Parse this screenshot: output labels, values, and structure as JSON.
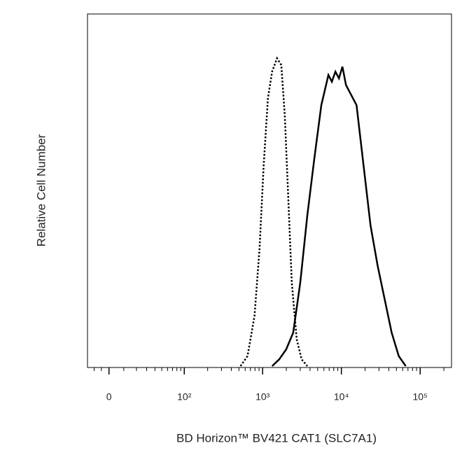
{
  "chart_data": {
    "type": "histogram-overlay",
    "xlabel": "BD Horizon™ BV421 CAT1 (SLC7A1)",
    "ylabel": "Relative Cell Number",
    "xscale": "biexponential",
    "xlim": [
      -15,
      250000
    ],
    "ylim": [
      0,
      100
    ],
    "xticks": [
      0,
      {
        "value": 100,
        "label": "10²"
      },
      {
        "value": 1000,
        "label": "10³"
      },
      {
        "value": 10000,
        "label": "10⁴"
      },
      {
        "value": 100000,
        "label": "10⁵"
      }
    ],
    "series": [
      {
        "style": "dotted",
        "color": "#000000",
        "x": [
          524,
          643,
          789,
          913,
          1031,
          1167,
          1319,
          1524,
          1726,
          1911,
          2119,
          2345,
          2710,
          3128,
          3692
        ],
        "values": [
          0,
          3,
          15,
          35,
          60,
          80,
          88,
          92,
          90,
          75,
          50,
          25,
          8,
          2,
          0
        ]
      },
      {
        "style": "solid",
        "color": "#000000",
        "x": [
          1319,
          1622,
          1991,
          2445,
          3007,
          3692,
          4532,
          5562,
          6842,
          7571,
          8399,
          9316,
          10308,
          11435,
          12678,
          14034,
          15568,
          19107,
          23453,
          28851,
          35414,
          43478,
          53480,
          65643
        ],
        "values": [
          0,
          2,
          5,
          10,
          25,
          45,
          62,
          78,
          87,
          85,
          88,
          86,
          89.5,
          84,
          82,
          80,
          78,
          60,
          42,
          30,
          20,
          10,
          3,
          0
        ]
      }
    ]
  }
}
